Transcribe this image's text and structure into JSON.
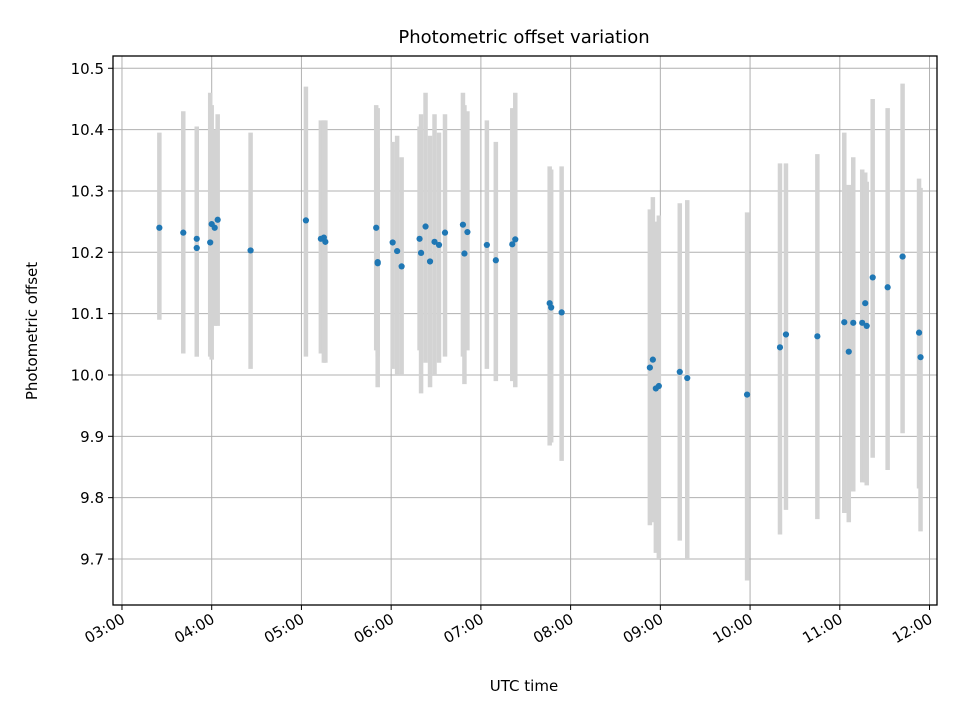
{
  "chart_data": {
    "type": "scatter",
    "title": "Photometric offset variation",
    "xlabel": "UTC time",
    "ylabel": "Photometric offset",
    "xlim": [
      "02:54",
      "12:05"
    ],
    "ylim": [
      9.625,
      10.52
    ],
    "grid": true,
    "x_ticks": [
      "03:00",
      "04:00",
      "05:00",
      "06:00",
      "07:00",
      "08:00",
      "09:00",
      "10:00",
      "11:00",
      "12:00"
    ],
    "y_ticks": [
      "9.7",
      "9.8",
      "9.9",
      "10.0",
      "10.1",
      "10.2",
      "10.3",
      "10.4",
      "10.5"
    ],
    "point_color": "#1f77b4",
    "errorbar_color": "#d3d3d3",
    "series": [
      {
        "x": [
          "03:25",
          "03:41",
          "03:50",
          "03:50",
          "03:59",
          "04:00",
          "04:02",
          "04:04",
          "04:26",
          "05:03",
          "05:13",
          "05:15",
          "05:16",
          "05:50",
          "05:51",
          "05:51",
          "06:01",
          "06:04",
          "06:07",
          "06:19",
          "06:20",
          "06:23",
          "06:26",
          "06:29",
          "06:32",
          "06:36",
          "06:48",
          "06:49",
          "06:51",
          "07:04",
          "07:10",
          "07:21",
          "07:23",
          "07:46",
          "07:47",
          "07:54",
          "08:53",
          "08:55",
          "08:57",
          "08:59",
          "09:13",
          "09:18",
          "09:58",
          "10:20",
          "10:24",
          "10:45",
          "11:03",
          "11:06",
          "11:09",
          "11:15",
          "11:17",
          "11:18",
          "11:22",
          "11:32",
          "11:42",
          "11:53",
          "11:54"
        ],
        "y": [
          10.24,
          10.232,
          10.207,
          10.222,
          10.216,
          10.246,
          10.24,
          10.253,
          10.203,
          10.252,
          10.222,
          10.224,
          10.217,
          10.24,
          10.184,
          10.182,
          10.216,
          10.202,
          10.177,
          10.222,
          10.199,
          10.242,
          10.185,
          10.217,
          10.212,
          10.232,
          10.245,
          10.198,
          10.233,
          10.212,
          10.187,
          10.213,
          10.221,
          10.117,
          10.11,
          10.102,
          10.012,
          10.025,
          9.978,
          9.982,
          10.005,
          9.995,
          9.968,
          10.045,
          10.066,
          10.063,
          10.086,
          10.038,
          10.085,
          10.085,
          10.117,
          10.08,
          10.159,
          10.143,
          10.193,
          10.069,
          10.029
        ],
        "err_low": [
          10.09,
          10.035,
          10.03,
          10.03,
          10.03,
          10.025,
          10.08,
          10.08,
          10.01,
          10.03,
          10.035,
          10.02,
          10.02,
          10.04,
          9.98,
          10.03,
          10.01,
          10.0,
          10.0,
          10.04,
          9.97,
          10.02,
          9.98,
          10.0,
          10.02,
          10.03,
          10.03,
          9.985,
          10.04,
          10.01,
          9.99,
          9.99,
          9.98,
          9.885,
          9.89,
          9.86,
          9.755,
          9.76,
          9.71,
          9.7,
          9.73,
          9.7,
          9.665,
          9.74,
          9.78,
          9.765,
          9.775,
          9.76,
          9.81,
          9.825,
          9.825,
          9.82,
          9.865,
          9.845,
          9.905,
          9.815,
          9.745
        ],
        "err_high": [
          10.395,
          10.43,
          10.385,
          10.405,
          10.46,
          10.44,
          10.4,
          10.425,
          10.395,
          10.47,
          10.415,
          10.415,
          10.415,
          10.44,
          10.435,
          10.37,
          10.38,
          10.39,
          10.355,
          10.405,
          10.425,
          10.46,
          10.39,
          10.425,
          10.395,
          10.425,
          10.46,
          10.44,
          10.43,
          10.415,
          10.38,
          10.435,
          10.46,
          10.34,
          10.335,
          10.34,
          10.27,
          10.29,
          10.25,
          10.26,
          10.28,
          10.285,
          10.265,
          10.345,
          10.345,
          10.36,
          10.395,
          10.31,
          10.355,
          10.335,
          10.33,
          10.315,
          10.45,
          10.435,
          10.475,
          10.32,
          10.305
        ]
      }
    ]
  }
}
